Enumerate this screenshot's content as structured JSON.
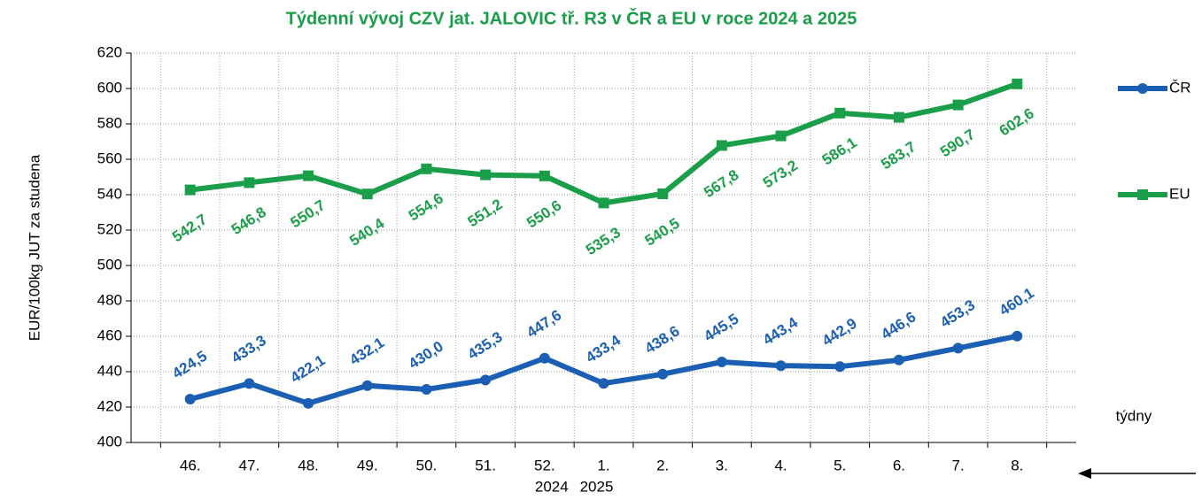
{
  "chart_data": {
    "type": "line",
    "title": "Týdenní vývoj CZV jat. JALOVIC tř. R3  v ČR a EU v roce 2024 a 2025",
    "y_label": "EUR/100kg  JUT za studena",
    "x_label": "týdny",
    "annotations": [
      "2024",
      "2025"
    ],
    "categories": [
      "46.",
      "47.",
      "48.",
      "49.",
      "50.",
      "51.",
      "52.",
      "1.",
      "2.",
      "3.",
      "4.",
      "5.",
      "6.",
      "7.",
      "8."
    ],
    "series": [
      {
        "name": "ČR",
        "color": "#1a5fb4",
        "marker": "circle",
        "values": [
          424.5,
          433.3,
          422.1,
          432.1,
          430.0,
          435.3,
          447.6,
          433.4,
          438.6,
          445.5,
          443.4,
          442.9,
          446.6,
          453.3,
          460.1
        ],
        "value_labels": [
          "424,5",
          "433,3",
          "422,1",
          "432,1",
          "430,0",
          "435,3",
          "447,6",
          "433,4",
          "438,6",
          "445,5",
          "443,4",
          "442,9",
          "446,6",
          "453,3",
          "460,1"
        ]
      },
      {
        "name": "EU",
        "color": "#1a9e4a",
        "marker": "square",
        "values": [
          542.7,
          546.8,
          550.7,
          540.4,
          554.6,
          551.2,
          550.6,
          535.3,
          540.5,
          567.8,
          573.2,
          586.1,
          583.7,
          590.7,
          602.6
        ],
        "value_labels": [
          "542,7",
          "546,8",
          "550,7",
          "540,4",
          "554,6",
          "551,2",
          "550,6",
          "535,3",
          "540,5",
          "567,8",
          "573,2",
          "586,1",
          "583,7",
          "590,7",
          "602,6"
        ]
      }
    ],
    "ylim": [
      400,
      620
    ],
    "yticks": [
      400,
      420,
      440,
      460,
      480,
      500,
      520,
      540,
      560,
      580,
      600,
      620
    ],
    "grid": true
  }
}
